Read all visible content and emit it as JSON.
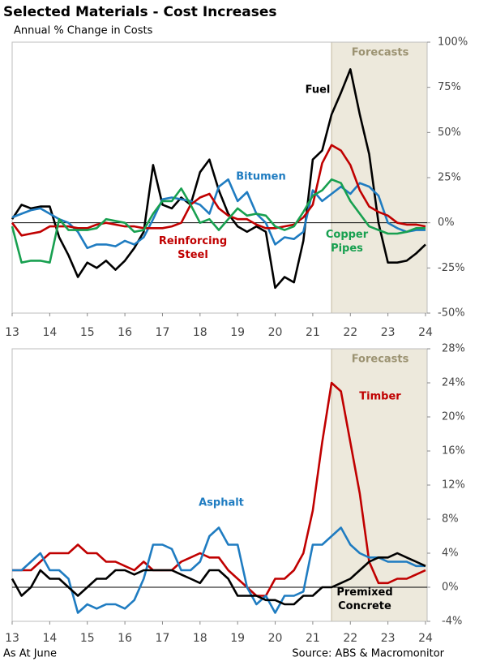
{
  "title": "Selected Materials - Cost Increases",
  "subtitle": "Annual % Change in Costs",
  "footer_left": "As At June",
  "footer_right": "Source: ABS & Macromonitor",
  "chart_data": [
    {
      "type": "line",
      "x": [
        13,
        13.25,
        13.5,
        13.75,
        14,
        14.25,
        14.5,
        14.75,
        15,
        15.25,
        15.5,
        15.75,
        16,
        16.25,
        16.5,
        16.75,
        17,
        17.25,
        17.5,
        17.75,
        18,
        18.25,
        18.5,
        18.75,
        19,
        19.25,
        19.5,
        19.75,
        20,
        20.25,
        20.5,
        20.75,
        21,
        21.25,
        21.5,
        21.75,
        22,
        22.25,
        22.5,
        22.75,
        23,
        23.25,
        23.5,
        23.75,
        24
      ],
      "xlim": [
        13,
        24
      ],
      "xticks": [
        13,
        14,
        15,
        16,
        17,
        18,
        19,
        20,
        21,
        22,
        23,
        24
      ],
      "ylim": [
        -50,
        100
      ],
      "yticks": [
        {
          "value": -50,
          "label": "-50%"
        },
        {
          "value": -25,
          "label": "-25%"
        },
        {
          "value": 0,
          "label": "0%"
        },
        {
          "value": 25,
          "label": "25%"
        },
        {
          "value": 50,
          "label": "50%"
        },
        {
          "value": 75,
          "label": "75%"
        },
        {
          "value": 100,
          "label": "100%"
        }
      ],
      "shaded_region": {
        "label": "Forecasts",
        "x": [
          21.5,
          24
        ]
      },
      "series": [
        {
          "name": "Fuel",
          "color": "#000000",
          "values": [
            2,
            10,
            8,
            9,
            9,
            -8,
            -18,
            -30,
            -22,
            -25,
            -21,
            -26,
            -21,
            -14,
            -5,
            32,
            10,
            8,
            14,
            10,
            28,
            35,
            18,
            5,
            -2,
            -5,
            -2,
            -5,
            -36,
            -30,
            -33,
            -10,
            35,
            40,
            60,
            72,
            85,
            60,
            38,
            0,
            -22,
            -22,
            -21,
            -17,
            -12
          ]
        },
        {
          "name": "Bitumen",
          "color": "#1f7cc1",
          "values": [
            3,
            5,
            7,
            8,
            5,
            2,
            0,
            -5,
            -14,
            -12,
            -12,
            -13,
            -10,
            -12,
            -8,
            2,
            13,
            14,
            13,
            12,
            10,
            5,
            20,
            24,
            12,
            17,
            5,
            0,
            -12,
            -8,
            -9,
            -5,
            18,
            12,
            16,
            20,
            16,
            22,
            20,
            15,
            0,
            -3,
            -5,
            -4,
            -4
          ]
        },
        {
          "name": "Reinforcing Steel",
          "color": "#c00000",
          "values": [
            0,
            -7,
            -6,
            -5,
            -2,
            -2,
            -2,
            -3,
            -3,
            -1,
            0,
            -1,
            -2,
            -2,
            -3,
            -3,
            -3,
            -2,
            0,
            10,
            14,
            16,
            8,
            4,
            2,
            2,
            -1,
            -3,
            -3,
            -2,
            -1,
            3,
            10,
            33,
            43,
            40,
            32,
            18,
            9,
            6,
            4,
            0,
            -1,
            -1,
            -2
          ]
        },
        {
          "name": "Copper Pipes",
          "color": "#18a050",
          "values": [
            -2,
            -22,
            -21,
            -21,
            -22,
            2,
            -4,
            -4,
            -4,
            -3,
            2,
            1,
            0,
            -5,
            -4,
            5,
            12,
            12,
            19,
            10,
            0,
            2,
            -4,
            2,
            8,
            4,
            5,
            4,
            -2,
            -4,
            -2,
            6,
            15,
            18,
            24,
            22,
            12,
            5,
            -2,
            -4,
            -6,
            -6,
            -5,
            -3,
            -3
          ]
        }
      ]
    },
    {
      "type": "line",
      "x": [
        13,
        13.25,
        13.5,
        13.75,
        14,
        14.25,
        14.5,
        14.75,
        15,
        15.25,
        15.5,
        15.75,
        16,
        16.25,
        16.5,
        16.75,
        17,
        17.25,
        17.5,
        17.75,
        18,
        18.25,
        18.5,
        18.75,
        19,
        19.25,
        19.5,
        19.75,
        20,
        20.25,
        20.5,
        20.75,
        21,
        21.25,
        21.5,
        21.75,
        22,
        22.25,
        22.5,
        22.75,
        23,
        23.25,
        23.5,
        23.75,
        24
      ],
      "xlim": [
        13,
        24
      ],
      "xticks": [
        13,
        14,
        15,
        16,
        17,
        18,
        19,
        20,
        21,
        22,
        23,
        24
      ],
      "ylim": [
        -4,
        28
      ],
      "yticks": [
        {
          "value": -4,
          "label": "-4%"
        },
        {
          "value": 0,
          "label": "0%"
        },
        {
          "value": 4,
          "label": "4%"
        },
        {
          "value": 8,
          "label": "8%"
        },
        {
          "value": 12,
          "label": "12%"
        },
        {
          "value": 16,
          "label": "16%"
        },
        {
          "value": 20,
          "label": "20%"
        },
        {
          "value": 24,
          "label": "24%"
        },
        {
          "value": 28,
          "label": "28%"
        }
      ],
      "shaded_region": {
        "label": "Forecasts",
        "x": [
          21.5,
          24
        ]
      },
      "series": [
        {
          "name": "Timber",
          "color": "#c00000",
          "values": [
            2,
            2,
            2,
            3,
            4,
            4,
            4,
            5,
            4,
            4,
            3,
            3,
            2.5,
            2,
            3,
            2,
            2,
            2,
            3,
            3.5,
            4,
            3.5,
            3.5,
            2,
            1,
            0,
            -1,
            -1,
            1,
            1,
            2,
            4,
            9,
            17,
            24,
            23,
            17,
            11,
            3,
            0.5,
            0.5,
            1,
            1,
            1.5,
            2
          ]
        },
        {
          "name": "Asphalt",
          "color": "#1f7cc1",
          "values": [
            2,
            2,
            3,
            4,
            2,
            2,
            1,
            -3,
            -2,
            -2.5,
            -2,
            -2,
            -2.5,
            -1.5,
            1,
            5,
            5,
            4.5,
            2,
            2,
            3,
            6,
            7,
            5,
            5,
            0,
            -2,
            -1,
            -3,
            -1,
            -1,
            -0.5,
            5,
            5,
            6,
            7,
            5,
            4,
            3.5,
            3.5,
            3,
            3,
            3,
            2.5,
            2.5
          ]
        },
        {
          "name": "Premixed Concrete",
          "color": "#000000",
          "values": [
            1,
            -1,
            0,
            2,
            1,
            1,
            0,
            -1,
            0,
            1,
            1,
            2,
            2,
            1.5,
            2,
            2,
            2,
            2,
            1.5,
            1,
            0.5,
            2,
            2,
            1,
            -1,
            -1,
            -1,
            -1.5,
            -1.5,
            -2,
            -2,
            -1,
            -1,
            0,
            0,
            0.5,
            1,
            2,
            3,
            3.5,
            3.5,
            4,
            3.5,
            3,
            2.5
          ]
        }
      ]
    }
  ]
}
